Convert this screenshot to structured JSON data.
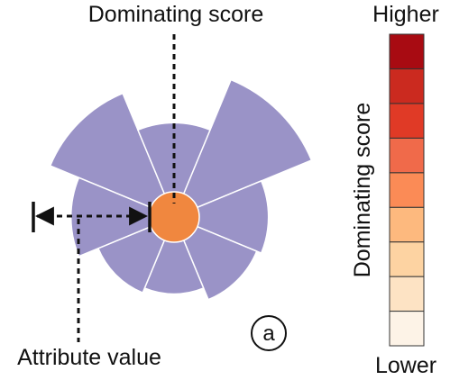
{
  "labels": {
    "dominating_score": "Dominating score",
    "attribute_value": "Attribute value",
    "panel_marker": "a"
  },
  "legend": {
    "title": "Dominating score",
    "top_label": "Higher",
    "bottom_label": "Lower",
    "colors": [
      "#fdf3e7",
      "#fde3c4",
      "#fdd3a2",
      "#fdb97e",
      "#fb8b56",
      "#f06a4a",
      "#e03a26",
      "#cb2a1f",
      "#a80b12"
    ]
  },
  "glyph": {
    "petal_color": "#9a93c7",
    "center_color": "#f0873f",
    "petal_count": 8,
    "attribute_values": [
      0.88,
      0.56,
      1.0,
      0.56,
      0.52,
      0.42,
      0.46,
      0.63
    ]
  }
}
